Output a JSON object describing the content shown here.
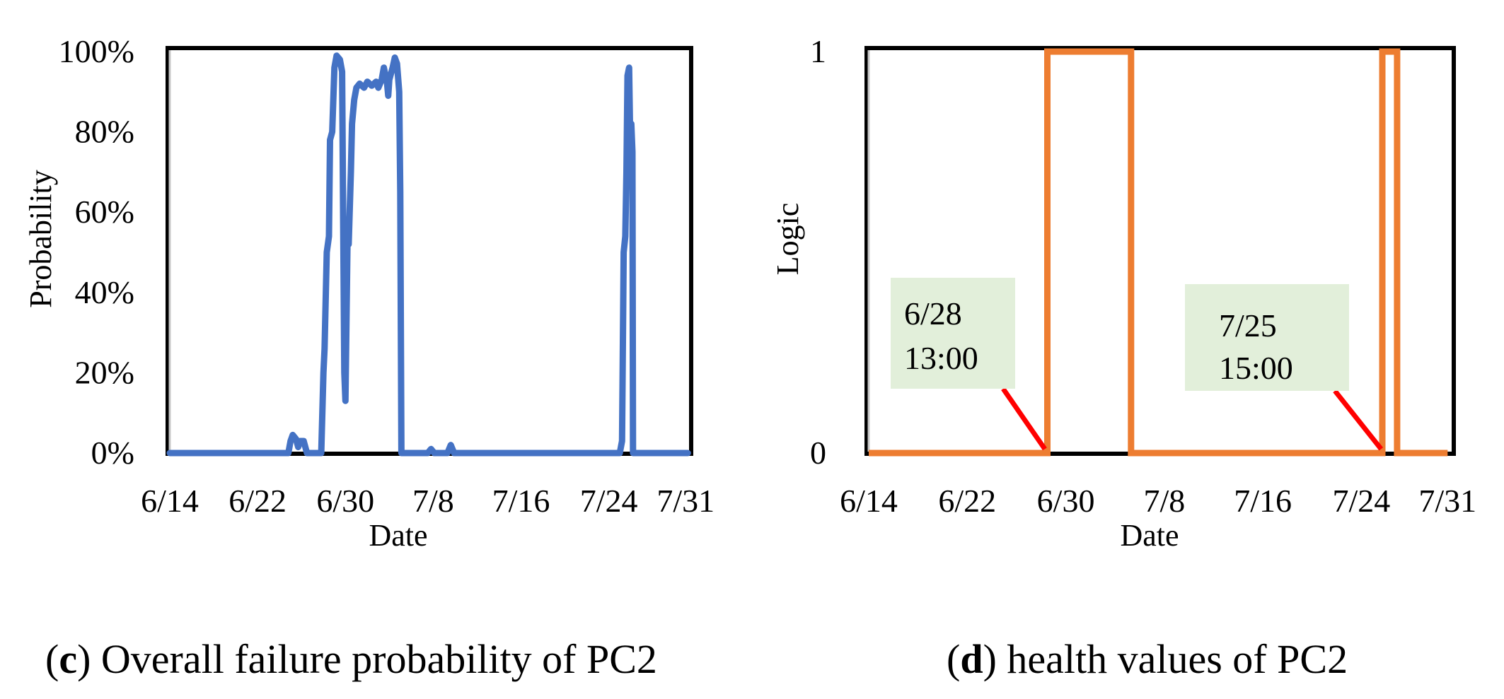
{
  "chart_data": [
    {
      "id": "c",
      "type": "line",
      "caption_letter": "c",
      "caption_text": " Overall failure probability of PC2",
      "xlabel": "Date",
      "ylabel": "Probability",
      "x_tick_labels": [
        "6/14",
        "6/22",
        "6/30",
        "7/8",
        "7/16",
        "7/24",
        "7/31"
      ],
      "x_tick_days": [
        0,
        8,
        16,
        24,
        32,
        40,
        47
      ],
      "xlim_days": [
        0,
        47.5
      ],
      "y_tick_labels": [
        "0%",
        "20%",
        "40%",
        "60%",
        "80%",
        "100%"
      ],
      "y_tick_values": [
        0,
        20,
        40,
        60,
        80,
        100
      ],
      "ylim": [
        0,
        100
      ],
      "grid": false,
      "series": [
        {
          "name": "Overall failure probability",
          "color": "#4472C4",
          "points": [
            [
              0,
              0
            ],
            [
              10.8,
              0
            ],
            [
              11.0,
              3
            ],
            [
              11.2,
              4.5
            ],
            [
              11.5,
              3.5
            ],
            [
              11.7,
              1.5
            ],
            [
              11.9,
              3
            ],
            [
              12.2,
              3
            ],
            [
              12.5,
              0
            ],
            [
              13.8,
              0
            ],
            [
              14.0,
              20
            ],
            [
              14.1,
              26
            ],
            [
              14.3,
              50
            ],
            [
              14.5,
              54
            ],
            [
              14.6,
              78
            ],
            [
              14.8,
              80
            ],
            [
              15.0,
              96
            ],
            [
              15.2,
              99
            ],
            [
              15.5,
              98
            ],
            [
              15.7,
              95
            ],
            [
              15.8,
              58
            ],
            [
              15.9,
              20
            ],
            [
              16.0,
              13
            ],
            [
              16.2,
              55
            ],
            [
              16.3,
              52
            ],
            [
              16.5,
              70
            ],
            [
              16.6,
              82
            ],
            [
              16.8,
              88
            ],
            [
              17.0,
              91
            ],
            [
              17.3,
              92
            ],
            [
              17.7,
              91
            ],
            [
              18.0,
              92.5
            ],
            [
              18.4,
              91.5
            ],
            [
              18.8,
              92.5
            ],
            [
              19.0,
              91
            ],
            [
              19.3,
              93
            ],
            [
              19.5,
              96
            ],
            [
              19.8,
              92
            ],
            [
              19.9,
              89
            ],
            [
              20.0,
              93
            ],
            [
              20.3,
              96
            ],
            [
              20.5,
              98.5
            ],
            [
              20.7,
              97
            ],
            [
              20.9,
              90
            ],
            [
              21.0,
              65
            ],
            [
              21.1,
              0
            ],
            [
              23.5,
              0
            ],
            [
              23.8,
              1
            ],
            [
              24.1,
              0
            ],
            [
              25.3,
              0
            ],
            [
              25.6,
              2
            ],
            [
              25.9,
              0
            ],
            [
              41.0,
              0
            ],
            [
              41.2,
              3
            ],
            [
              41.35,
              50
            ],
            [
              41.5,
              54
            ],
            [
              41.6,
              70
            ],
            [
              41.7,
              94
            ],
            [
              41.85,
              96
            ],
            [
              41.95,
              77
            ],
            [
              42.05,
              82
            ],
            [
              42.15,
              75
            ],
            [
              42.2,
              0
            ],
            [
              47.2,
              0
            ]
          ]
        }
      ]
    },
    {
      "id": "d",
      "type": "line",
      "caption_letter": "d",
      "caption_text": " health values of PC2",
      "xlabel": "Date",
      "ylabel": "Logic",
      "x_tick_labels": [
        "6/14",
        "6/22",
        "6/30",
        "7/8",
        "7/16",
        "7/24",
        "7/31"
      ],
      "x_tick_days": [
        0,
        8,
        16,
        24,
        32,
        40,
        47
      ],
      "xlim_days": [
        0,
        47.5
      ],
      "y_tick_labels": [
        "0",
        "1"
      ],
      "y_tick_values": [
        0,
        1
      ],
      "ylim": [
        0,
        1
      ],
      "grid": false,
      "series": [
        {
          "name": "Health value",
          "color": "#ED7D31",
          "points": [
            [
              0,
              0
            ],
            [
              14.5,
              0
            ],
            [
              14.5,
              1
            ],
            [
              21.3,
              1
            ],
            [
              21.3,
              0
            ],
            [
              41.7,
              0
            ],
            [
              41.7,
              1
            ],
            [
              42.9,
              1
            ],
            [
              42.9,
              0
            ],
            [
              47.0,
              0
            ]
          ]
        }
      ],
      "annotations": [
        {
          "lines": [
            "6/28",
            "13:00"
          ],
          "box_color": "#E2EFDA",
          "pointer_color": "#FF0000",
          "target": [
            14.3,
            0.01
          ]
        },
        {
          "lines": [
            "7/25",
            "15:00"
          ],
          "box_color": "#E2EFDA",
          "pointer_color": "#FF0000",
          "target": [
            41.6,
            0.01
          ]
        }
      ]
    }
  ]
}
